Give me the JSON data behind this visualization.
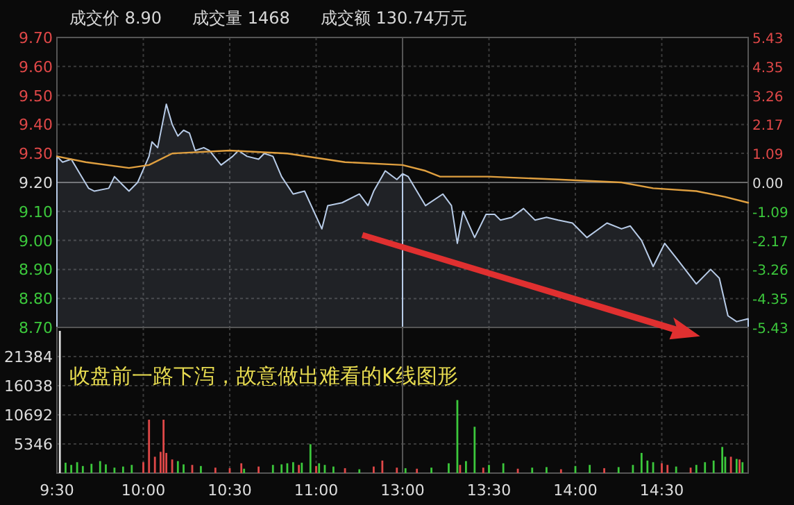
{
  "chart_data": [
    {
      "type": "line",
      "annotations": [
        "成交价 8.90",
        "成交量 1468",
        "成交额 130.74万元"
      ],
      "xlim": [
        9.5,
        11.5
      ],
      "xticks": [
        9.5,
        10,
        10.5,
        11
      ],
      "ylim": [
        8.7,
        9.7
      ],
      "yticks": [
        {
          "value": 9.7,
          "label": "9.70"
        },
        {
          "value": 9.6,
          "label": "9.60"
        },
        {
          "value": 9.5,
          "label": "9.50"
        },
        {
          "value": 9.4,
          "label": "9.40"
        },
        {
          "value": 9.3,
          "label": "9.30"
        },
        {
          "value": 9.2,
          "label": "9.20"
        },
        {
          "value": 9.1,
          "label": "9.10"
        },
        {
          "value": 9.0,
          "label": "9.00"
        },
        {
          "value": 8.9,
          "label": "8.90"
        },
        {
          "value": 8.8,
          "label": "8.80"
        },
        {
          "value": 8.7,
          "label": "8.70"
        }
      ],
      "ref_lines": [
        {
          "axis": "y",
          "value": 9.2,
          "label": null
        }
      ],
      "grid": true,
      "tick_labels": "y",
      "series": [
        {
          "type": "area",
          "color": "#b8cce8",
          "x": [
            9.5,
            9.533,
            9.583,
            9.683,
            9.717,
            9.8,
            9.833,
            9.883,
            9.917,
            9.967,
            10.033,
            10.05,
            10.083,
            10.133,
            10.167,
            10.2,
            10.233,
            10.267,
            10.3,
            10.35,
            10.383,
            10.45,
            10.517,
            10.55,
            10.6,
            10.667,
            10.7,
            10.75,
            10.8,
            10.867,
            10.933,
            11.033,
            11.067,
            11.15,
            11.25,
            11.3,
            11.333,
            11.4,
            11.467,
            11.5
          ],
          "values": [
            9.29,
            9.27,
            9.28,
            9.18,
            9.17,
            9.18,
            9.22,
            9.19,
            9.17,
            9.2,
            9.29,
            9.34,
            9.32,
            9.47,
            9.4,
            9.36,
            9.38,
            9.37,
            9.31,
            9.32,
            9.31,
            9.26,
            9.29,
            9.31,
            9.29,
            9.28,
            9.3,
            9.29,
            9.22,
            9.16,
            9.17,
            9.04,
            9.12,
            9.13,
            9.16,
            9.12,
            9.17,
            9.24,
            9.21,
            9.23
          ]
        },
        {
          "color": "#e0a040",
          "x": [
            9.5,
            9.667,
            9.917,
            10.033,
            10.167,
            10.5,
            10.833,
            11.167,
            11.5
          ],
          "values": [
            9.29,
            9.27,
            9.25,
            9.26,
            9.3,
            9.31,
            9.3,
            9.27,
            9.26
          ]
        }
      ]
    },
    {
      "type": "line",
      "xlim": [
        13,
        15
      ],
      "xticks": [
        13,
        13.5,
        14,
        14.5
      ],
      "ylim": [
        8.7,
        9.7
      ],
      "y2lim": [
        -5.43,
        5.43
      ],
      "y2ticks": [
        {
          "value": 5.43,
          "label": "5.43"
        },
        {
          "value": 4.35,
          "label": "4.35"
        },
        {
          "value": 3.26,
          "label": "3.26"
        },
        {
          "value": 2.17,
          "label": "2.17"
        },
        {
          "value": 1.09,
          "label": "1.09"
        },
        {
          "value": 0,
          "label": "0.00"
        },
        {
          "value": -1.09,
          "label": "-1.09"
        },
        {
          "value": -2.17,
          "label": "-2.17"
        },
        {
          "value": -3.26,
          "label": "-3.26"
        },
        {
          "value": -4.35,
          "label": "-4.35"
        },
        {
          "value": -5.43,
          "label": "-5.43"
        }
      ],
      "ref_lines": [
        {
          "axis": "y2",
          "value": 0,
          "label": null
        }
      ],
      "grid": true,
      "tick_labels": "y",
      "series": [
        {
          "type": "area",
          "color": "#b8cce8",
          "x": [
            13,
            13.033,
            13.133,
            13.233,
            13.283,
            13.317,
            13.35,
            13.417,
            13.483,
            13.533,
            13.567,
            13.633,
            13.7,
            13.767,
            13.833,
            13.9,
            13.983,
            14.067,
            14.183,
            14.267,
            14.317,
            14.383,
            14.45,
            14.517,
            14.583,
            14.7,
            14.783,
            14.833,
            14.883,
            14.933,
            15
          ],
          "values": [
            9.23,
            9.22,
            9.12,
            9.16,
            9.12,
            8.99,
            9.1,
            9.01,
            9.09,
            9.09,
            9.07,
            9.08,
            9.11,
            9.07,
            9.08,
            9.07,
            9.06,
            9.01,
            9.06,
            9.04,
            9.05,
            9.0,
            8.91,
            8.99,
            8.94,
            8.85,
            8.9,
            8.87,
            8.74,
            8.72,
            8.73
          ]
        },
        {
          "color": "#e0a040",
          "x": [
            13,
            13.133,
            13.217,
            13.5,
            13.9,
            14.267,
            14.45,
            14.7,
            14.867,
            15
          ],
          "values": [
            9.26,
            9.24,
            9.22,
            9.22,
            9.21,
            9.2,
            9.18,
            9.17,
            9.15,
            9.13
          ]
        }
      ]
    },
    {
      "type": "bar",
      "annotations": [
        "收盘前一路下泻，故意做出难看的K线图形"
      ],
      "xlim": [
        9.5,
        11.5
      ],
      "xticks": [
        {
          "value": 9.5,
          "label": "9:30"
        },
        {
          "value": 10,
          "label": "10:00"
        },
        {
          "value": 10.5,
          "label": "10:30"
        },
        {
          "value": 11,
          "label": "11:00"
        }
      ],
      "ylim": [
        0,
        26730
      ],
      "yticks": [
        5346,
        10692,
        16038,
        21384
      ],
      "grid": true,
      "series": [
        {
          "color": "#e04848",
          "x": [
            10,
            10.033,
            10.067,
            10.1,
            10.117,
            10.133,
            10.167,
            10.283,
            10.417,
            10.5,
            10.567,
            10.667,
            10.9,
            11,
            11.167,
            11.333,
            11.383,
            11.467
          ],
          "values": [
            2000,
            9800,
            3000,
            3900,
            9800,
            3700,
            2500,
            1500,
            1000,
            900,
            1800,
            1200,
            1500,
            1300,
            900,
            1200,
            2300,
            1000
          ]
        },
        {
          "color": "#3cc83c",
          "x": [
            9.55,
            9.583,
            9.617,
            9.65,
            9.7,
            9.75,
            9.783,
            9.833,
            9.883,
            9.933,
            10.2,
            10.233,
            10.333,
            10.583,
            10.75,
            10.8,
            10.833,
            10.867,
            10.917,
            10.967,
            11.017,
            11.05,
            11.1,
            11.25
          ],
          "values": [
            1900,
            1500,
            2000,
            1300,
            1700,
            2200,
            1600,
            1000,
            1200,
            1500,
            2200,
            1600,
            1300,
            800,
            1500,
            1600,
            1800,
            2000,
            1900,
            5300,
            1800,
            1500,
            1200,
            700
          ]
        },
        {
          "color": "#dddddd",
          "x": [
            9.517
          ],
          "values": [
            26100
          ]
        }
      ]
    },
    {
      "type": "bar",
      "xlim": [
        13,
        15
      ],
      "xticks": [
        {
          "value": 13,
          "label": "13:00"
        },
        {
          "value": 13.5,
          "label": "13:30"
        },
        {
          "value": 14,
          "label": "14:00"
        },
        {
          "value": 14.5,
          "label": "14:30"
        }
      ],
      "ylim": [
        0,
        26730
      ],
      "yticks": [
        5346,
        10692,
        16038,
        21384
      ],
      "grid": true,
      "tick_labels": "x",
      "series": [
        {
          "color": "#e04848",
          "x": [
            13.083,
            13.333,
            13.467,
            13.667,
            13.917,
            14.167,
            14.5,
            14.533,
            14.667,
            14.9,
            14.95
          ],
          "values": [
            800,
            1500,
            1000,
            800,
            700,
            900,
            1800,
            1500,
            1000,
            3000,
            2500
          ]
        },
        {
          "color": "#3cc83c",
          "x": [
            13.017,
            13.167,
            13.267,
            13.317,
            13.367,
            13.417,
            13.5,
            13.583,
            13.75,
            13.833,
            14,
            14.083,
            14.25,
            14.333,
            14.383,
            14.417,
            14.45,
            14.583,
            14.7,
            14.75,
            14.8,
            14.85,
            14.867,
            14.933,
            14.967
          ],
          "values": [
            900,
            1000,
            1800,
            13400,
            2200,
            8500,
            1500,
            1800,
            1000,
            1100,
            1300,
            1500,
            1100,
            1500,
            3700,
            2300,
            2000,
            1200,
            1500,
            2000,
            2300,
            4800,
            3000,
            2600,
            2000
          ]
        }
      ]
    }
  ]
}
